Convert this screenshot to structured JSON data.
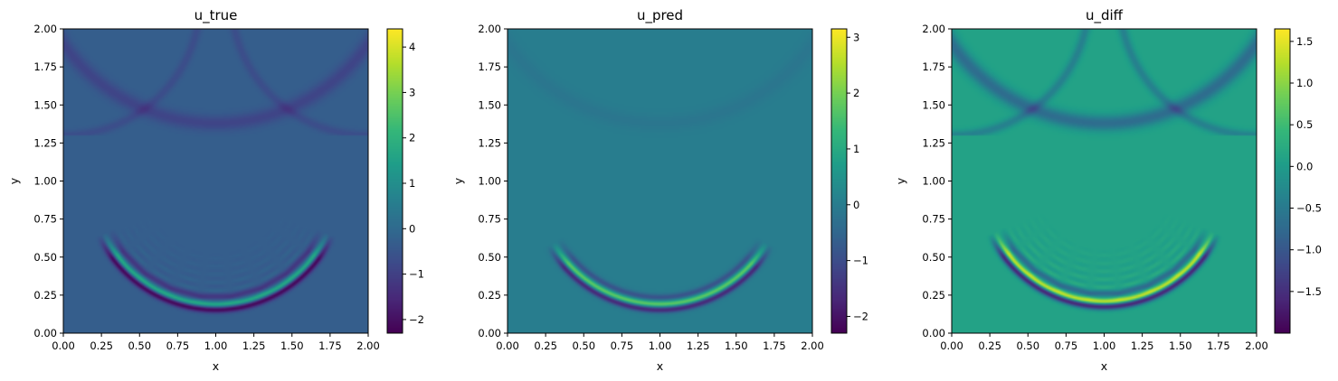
{
  "colors": {
    "viridis": [
      "#440154",
      "#482878",
      "#3e4989",
      "#31688e",
      "#26828e",
      "#1f9e89",
      "#35b779",
      "#6ece58",
      "#b5de2b",
      "#fde725"
    ],
    "axis": "#000000"
  },
  "chart_data": [
    {
      "type": "heatmap",
      "title": "u_true",
      "xlabel": "x",
      "ylabel": "y",
      "xlim": [
        0,
        2
      ],
      "ylim": [
        0,
        2
      ],
      "xticks": [
        "0.00",
        "0.25",
        "0.50",
        "0.75",
        "1.00",
        "1.25",
        "1.50",
        "1.75",
        "2.00"
      ],
      "yticks": [
        "0.00",
        "0.25",
        "0.50",
        "0.75",
        "1.00",
        "1.25",
        "1.50",
        "1.75",
        "2.00"
      ],
      "colorbar": {
        "range": [
          -2.3,
          4.4
        ],
        "ticks": [
          -2,
          -1,
          0,
          1,
          2,
          3,
          4
        ],
        "tick_labels": [
          "−2",
          "−1",
          "0",
          "1",
          "2",
          "3",
          "4"
        ]
      },
      "field": {
        "background": -0.3,
        "main_arc": {
          "center": [
            1.0,
            1.0
          ],
          "radius": 0.81,
          "theta_start_deg": 205,
          "theta_end_deg": 335,
          "peak": 2.2,
          "trough": -2.0,
          "ringing": true
        },
        "upper_arc": {
          "center": [
            1.0,
            2.6
          ],
          "radius": 1.22,
          "amplitude": -0.6
        },
        "side_arcs": [
          {
            "center": [
              0.0,
              2.2
            ],
            "radius": 0.9,
            "amplitude": -0.4
          },
          {
            "center": [
              2.0,
              2.2
            ],
            "radius": 0.9,
            "amplitude": -0.4
          }
        ]
      }
    },
    {
      "type": "heatmap",
      "title": "u_pred",
      "xlabel": "x",
      "ylabel": "y",
      "xlim": [
        0,
        2
      ],
      "ylim": [
        0,
        2
      ],
      "xticks": [
        "0.00",
        "0.25",
        "0.50",
        "0.75",
        "1.00",
        "1.25",
        "1.50",
        "1.75",
        "2.00"
      ],
      "yticks": [
        "0.00",
        "0.25",
        "0.50",
        "0.75",
        "1.00",
        "1.25",
        "1.50",
        "1.75",
        "2.00"
      ],
      "colorbar": {
        "range": [
          -2.3,
          3.15
        ],
        "ticks": [
          -2,
          -1,
          0,
          1,
          2,
          3
        ],
        "tick_labels": [
          "−2",
          "−1",
          "0",
          "1",
          "2",
          "3"
        ]
      },
      "field": {
        "background": 0.0,
        "main_arc": {
          "center": [
            1.0,
            1.0
          ],
          "radius": 0.81,
          "theta_start_deg": 210,
          "theta_end_deg": 330,
          "peak": 1.9,
          "trough": -1.8,
          "ringing": false
        },
        "upper_arc": {
          "center": [
            1.0,
            2.6
          ],
          "radius": 1.22,
          "amplitude": -0.15
        },
        "side_arcs": []
      }
    },
    {
      "type": "heatmap",
      "title": "u_diff",
      "xlabel": "x",
      "ylabel": "y",
      "xlim": [
        0,
        2
      ],
      "ylim": [
        0,
        2
      ],
      "xticks": [
        "0.00",
        "0.25",
        "0.50",
        "0.75",
        "1.00",
        "1.25",
        "1.50",
        "1.75",
        "2.00"
      ],
      "yticks": [
        "0.00",
        "0.25",
        "0.50",
        "0.75",
        "1.00",
        "1.25",
        "1.50",
        "1.75",
        "2.00"
      ],
      "colorbar": {
        "range": [
          -2.0,
          1.65
        ],
        "ticks": [
          -1.5,
          -1.0,
          -0.5,
          0.0,
          0.5,
          1.0,
          1.5
        ],
        "tick_labels": [
          "−1.5",
          "−1.0",
          "−0.5",
          "0.0",
          "0.5",
          "1.0",
          "1.5"
        ]
      },
      "field": {
        "background": 0.1,
        "main_arc": {
          "center": [
            1.0,
            1.0
          ],
          "radius": 0.79,
          "theta_start_deg": 205,
          "theta_end_deg": 335,
          "peak": 1.4,
          "trough": -1.8,
          "ringing": true
        },
        "upper_arc": {
          "center": [
            1.0,
            2.6
          ],
          "radius": 1.22,
          "amplitude": -0.8
        },
        "side_arcs": [
          {
            "center": [
              0.0,
              2.2
            ],
            "radius": 0.9,
            "amplitude": -0.5
          },
          {
            "center": [
              2.0,
              2.2
            ],
            "radius": 0.9,
            "amplitude": -0.5
          }
        ]
      }
    }
  ]
}
